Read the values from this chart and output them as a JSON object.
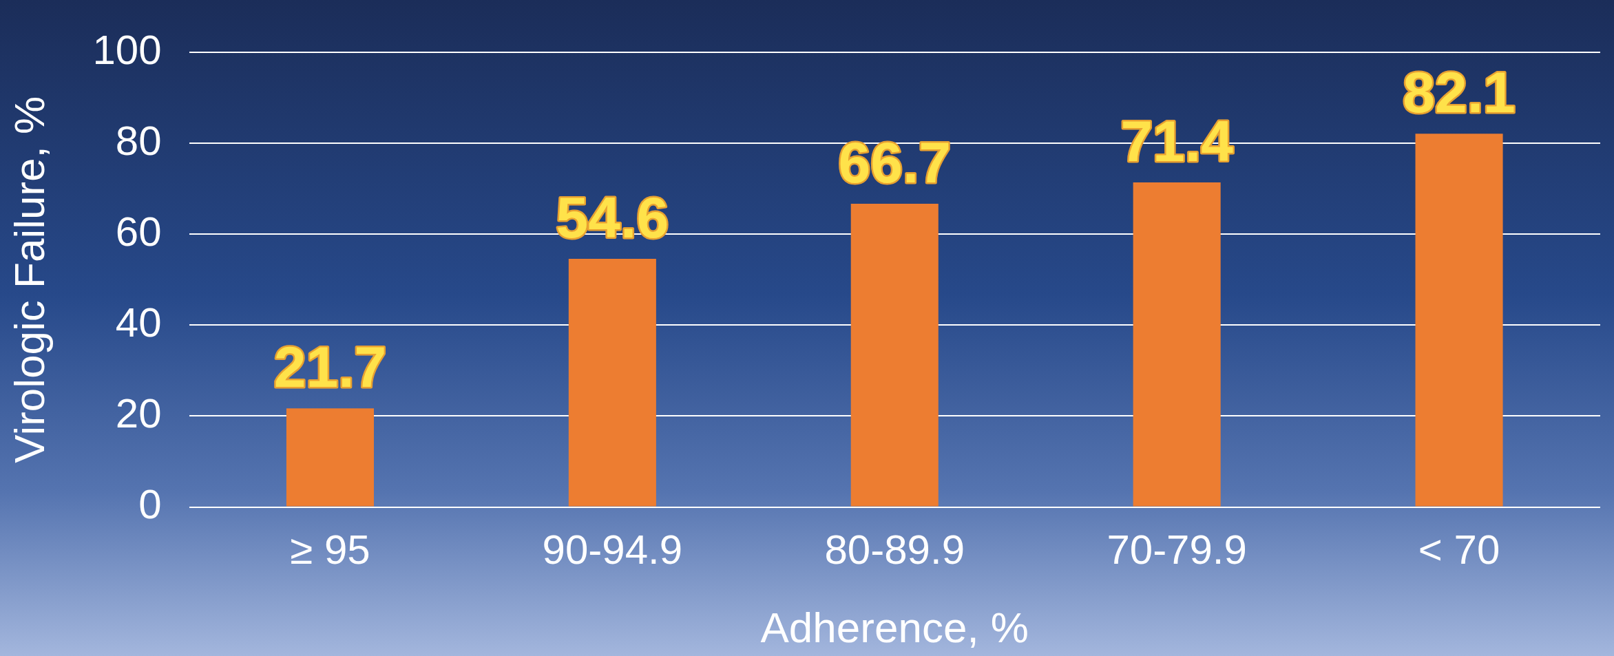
{
  "chart_data": {
    "type": "bar",
    "xlabel": "Adherence, %",
    "ylabel": "Virologic Failure, %",
    "categories": [
      "≥ 95",
      "90-94.9",
      "80-89.9",
      "70-79.9",
      "< 70"
    ],
    "values": [
      21.7,
      54.6,
      66.7,
      71.4,
      82.1
    ],
    "color": "#ed7d31",
    "ylim": [
      0,
      100
    ],
    "yticks": [
      0,
      20,
      40,
      60,
      80,
      100
    ],
    "grid": "y",
    "data_labels": true
  }
}
